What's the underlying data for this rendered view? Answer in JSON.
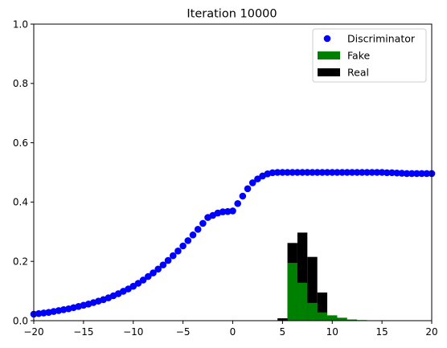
{
  "chart_data": {
    "type": "scatter+histogram",
    "title": "Iteration 10000",
    "xlabel": "",
    "ylabel": "",
    "xlim": [
      -20,
      20
    ],
    "ylim": [
      0,
      1
    ],
    "xticks": [
      -20,
      -15,
      -10,
      -5,
      0,
      5,
      10,
      15,
      20
    ],
    "xtick_labels": [
      "−20",
      "−15",
      "−10",
      "−5",
      "0",
      "5",
      "10",
      "15",
      "20"
    ],
    "yticks": [
      0,
      0.2,
      0.4,
      0.6,
      0.8,
      1.0
    ],
    "ytick_labels": [
      "0.0",
      "0.2",
      "0.4",
      "0.6",
      "0.8",
      "1.0"
    ],
    "legend": {
      "placement": "top-right",
      "entries": [
        {
          "label": "Discriminator",
          "kind": "marker",
          "color": "#0000ff"
        },
        {
          "label": "Fake",
          "kind": "patch",
          "color": "#008000"
        },
        {
          "label": "Real",
          "kind": "patch",
          "color": "#000000"
        }
      ]
    },
    "series": [
      {
        "name": "Discriminator",
        "kind": "scatter",
        "color": "#0000ff",
        "x": [
          -20,
          -19.5,
          -19,
          -18.5,
          -18,
          -17.5,
          -17,
          -16.5,
          -16,
          -15.5,
          -15,
          -14.5,
          -14,
          -13.5,
          -13,
          -12.5,
          -12,
          -11.5,
          -11,
          -10.5,
          -10,
          -9.5,
          -9,
          -8.5,
          -8,
          -7.5,
          -7,
          -6.5,
          -6,
          -5.5,
          -5,
          -4.5,
          -4,
          -3.5,
          -3,
          -2.5,
          -2,
          -1.5,
          -1,
          -0.5,
          0,
          0.5,
          1,
          1.5,
          2,
          2.5,
          3,
          3.5,
          4,
          4.5,
          5,
          5.5,
          6,
          6.5,
          7,
          7.5,
          8,
          8.5,
          9,
          9.5,
          10,
          10.5,
          11,
          11.5,
          12,
          12.5,
          13,
          13.5,
          14,
          14.5,
          15,
          15.5,
          16,
          16.5,
          17,
          17.5,
          18,
          18.5,
          19,
          19.5,
          20
        ],
        "y": [
          0.022,
          0.024,
          0.026,
          0.028,
          0.031,
          0.034,
          0.037,
          0.04,
          0.044,
          0.048,
          0.052,
          0.056,
          0.061,
          0.066,
          0.071,
          0.077,
          0.084,
          0.091,
          0.099,
          0.107,
          0.116,
          0.126,
          0.137,
          0.149,
          0.161,
          0.174,
          0.188,
          0.203,
          0.219,
          0.235,
          0.252,
          0.27,
          0.289,
          0.308,
          0.328,
          0.348,
          0.355,
          0.363,
          0.367,
          0.368,
          0.37,
          0.395,
          0.42,
          0.445,
          0.465,
          0.478,
          0.488,
          0.495,
          0.499,
          0.5,
          0.5,
          0.5,
          0.5,
          0.5,
          0.5,
          0.5,
          0.5,
          0.5,
          0.5,
          0.5,
          0.5,
          0.5,
          0.5,
          0.5,
          0.5,
          0.5,
          0.5,
          0.5,
          0.5,
          0.5,
          0.5,
          0.499,
          0.499,
          0.498,
          0.497,
          0.496,
          0.496,
          0.496,
          0.496,
          0.496,
          0.496
        ]
      },
      {
        "name": "Real",
        "kind": "histogram",
        "color": "#000000",
        "bin_edges": [
          4.5,
          5.5,
          6.5,
          7.5,
          8.5,
          9.5,
          10.5
        ],
        "values": [
          0.008,
          0.262,
          0.297,
          0.215,
          0.095,
          0.012
        ]
      },
      {
        "name": "Fake",
        "kind": "histogram",
        "color": "#008000",
        "bin_edges": [
          5.5,
          6.5,
          7.5,
          8.5,
          9.5,
          10.5,
          11.5,
          12.5,
          13.5
        ],
        "values": [
          0.195,
          0.128,
          0.06,
          0.028,
          0.018,
          0.01,
          0.004,
          0.002
        ]
      }
    ]
  }
}
